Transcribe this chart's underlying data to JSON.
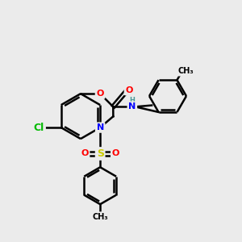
{
  "bg_color": "#ebebeb",
  "bond_color": "#000000",
  "bond_width": 1.8,
  "atom_colors": {
    "O": "#ff0000",
    "N": "#0000ff",
    "S": "#cccc00",
    "Cl": "#00bb00",
    "H": "#4a9a9a",
    "C": "#000000"
  },
  "font_size": 8,
  "figsize": [
    3.0,
    3.0
  ],
  "dpi": 100
}
